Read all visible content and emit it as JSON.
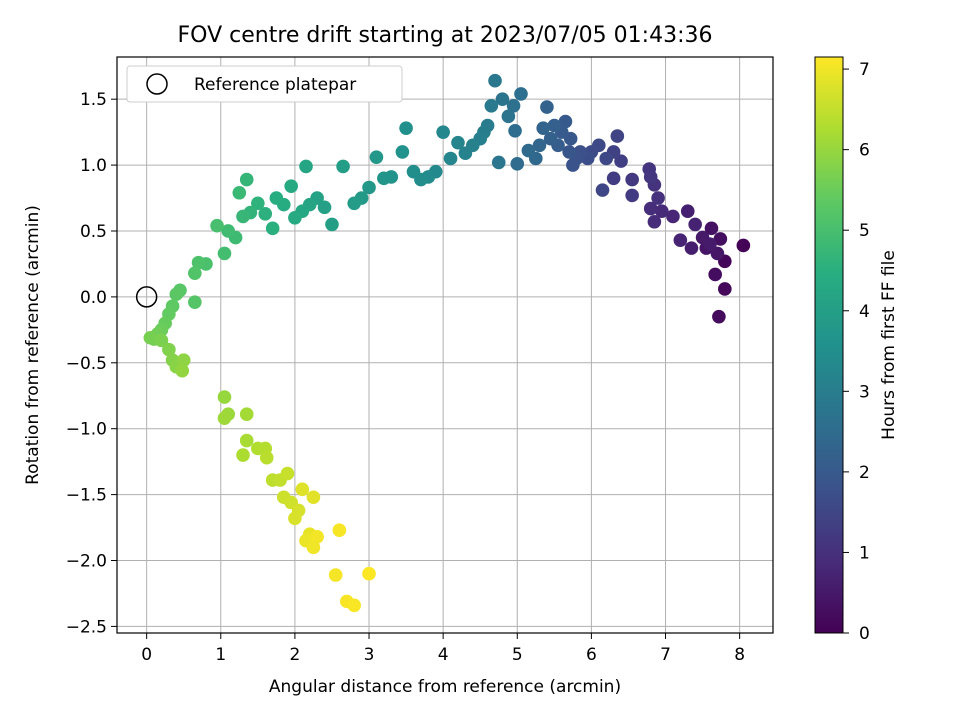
{
  "chart_data": {
    "type": "scatter",
    "title": "FOV centre drift starting at 2023/07/05 01:43:36",
    "xlabel": "Angular distance from reference (arcmin)",
    "ylabel": "Rotation from reference (arcmin)",
    "xlim": [
      -0.4,
      8.45
    ],
    "ylim": [
      -2.55,
      1.82
    ],
    "xticks": [
      0,
      1,
      2,
      3,
      4,
      5,
      6,
      7,
      8
    ],
    "yticks": [
      -2.5,
      -2.0,
      -1.5,
      -1.0,
      -0.5,
      0.0,
      0.5,
      1.0,
      1.5
    ],
    "xtick_labels": [
      "0",
      "1",
      "2",
      "3",
      "4",
      "5",
      "6",
      "7",
      "8"
    ],
    "ytick_labels": [
      "−2.5",
      "−2.0",
      "−1.5",
      "−1.0",
      "−0.5",
      "0.0",
      "0.5",
      "1.0",
      "1.5"
    ],
    "grid": true,
    "legend": {
      "placement": "top-left",
      "label": "Reference platepar"
    },
    "reference_point": {
      "x": 0,
      "y": 0
    },
    "colorbar": {
      "label": "Hours from first FF file",
      "colormap": "viridis",
      "range": [
        0,
        7.15
      ],
      "ticks": [
        0,
        1,
        2,
        3,
        4,
        5,
        6,
        7
      ],
      "tick_labels": [
        "0",
        "1",
        "2",
        "3",
        "4",
        "5",
        "6",
        "7"
      ]
    },
    "points": [
      [
        8.05,
        0.39,
        0.05
      ],
      [
        7.8,
        0.27,
        0.1
      ],
      [
        7.8,
        0.06,
        0.15
      ],
      [
        7.72,
        -0.15,
        0.2
      ],
      [
        7.67,
        0.17,
        0.25
      ],
      [
        7.74,
        0.44,
        0.3
      ],
      [
        7.62,
        0.52,
        0.35
      ],
      [
        7.55,
        0.37,
        0.4
      ],
      [
        7.7,
        0.33,
        0.45
      ],
      [
        7.5,
        0.45,
        0.5
      ],
      [
        7.6,
        0.4,
        0.55
      ],
      [
        7.35,
        0.37,
        0.6
      ],
      [
        7.3,
        0.65,
        0.65
      ],
      [
        7.4,
        0.55,
        0.7
      ],
      [
        7.2,
        0.43,
        0.75
      ],
      [
        7.1,
        0.61,
        0.8
      ],
      [
        6.95,
        0.65,
        0.85
      ],
      [
        6.85,
        0.57,
        0.9
      ],
      [
        6.8,
        0.67,
        0.95
      ],
      [
        6.9,
        0.75,
        1.0
      ],
      [
        6.85,
        0.85,
        1.05
      ],
      [
        6.78,
        0.97,
        1.1
      ],
      [
        6.8,
        0.91,
        1.15
      ],
      [
        6.55,
        0.89,
        1.2
      ],
      [
        6.55,
        0.77,
        1.25
      ],
      [
        6.3,
        0.9,
        1.3
      ],
      [
        6.4,
        1.03,
        1.35
      ],
      [
        6.3,
        1.1,
        1.4
      ],
      [
        6.35,
        1.22,
        1.45
      ],
      [
        6.15,
        0.81,
        1.5
      ],
      [
        6.2,
        1.05,
        1.55
      ],
      [
        6.1,
        1.15,
        1.6
      ],
      [
        6.0,
        1.1,
        1.65
      ],
      [
        5.95,
        1.05,
        1.7
      ],
      [
        5.85,
        1.1,
        1.75
      ],
      [
        5.8,
        1.05,
        1.8
      ],
      [
        5.75,
        1.0,
        1.85
      ],
      [
        5.7,
        1.1,
        1.9
      ],
      [
        5.72,
        1.2,
        1.95
      ],
      [
        5.65,
        1.33,
        2.0
      ],
      [
        5.6,
        1.25,
        2.05
      ],
      [
        5.55,
        1.15,
        2.1
      ],
      [
        5.5,
        1.3,
        2.15
      ],
      [
        5.45,
        1.2,
        2.2
      ],
      [
        5.4,
        1.44,
        2.25
      ],
      [
        5.35,
        1.28,
        2.3
      ],
      [
        5.3,
        1.15,
        2.35
      ],
      [
        5.25,
        1.05,
        2.4
      ],
      [
        5.15,
        1.11,
        2.45
      ],
      [
        5.0,
        1.01,
        2.5
      ],
      [
        4.97,
        1.26,
        2.55
      ],
      [
        5.05,
        1.54,
        2.6
      ],
      [
        4.95,
        1.45,
        2.65
      ],
      [
        4.88,
        1.37,
        2.7
      ],
      [
        4.8,
        1.5,
        2.75
      ],
      [
        4.75,
        1.02,
        2.8
      ],
      [
        4.7,
        1.64,
        2.85
      ],
      [
        4.65,
        1.45,
        2.9
      ],
      [
        4.6,
        1.3,
        2.95
      ],
      [
        4.55,
        1.25,
        3.0
      ],
      [
        4.5,
        1.2,
        3.05
      ],
      [
        4.4,
        1.15,
        3.1
      ],
      [
        4.3,
        1.09,
        3.15
      ],
      [
        4.2,
        1.17,
        3.2
      ],
      [
        4.1,
        1.05,
        3.25
      ],
      [
        4.0,
        1.25,
        3.3
      ],
      [
        3.9,
        0.95,
        3.35
      ],
      [
        3.8,
        0.91,
        3.4
      ],
      [
        3.7,
        0.89,
        3.45
      ],
      [
        3.6,
        0.95,
        3.5
      ],
      [
        3.5,
        1.28,
        3.55
      ],
      [
        3.45,
        1.1,
        3.6
      ],
      [
        3.3,
        0.91,
        3.65
      ],
      [
        3.2,
        0.9,
        3.7
      ],
      [
        3.1,
        1.06,
        3.75
      ],
      [
        3.0,
        0.83,
        3.8
      ],
      [
        2.9,
        0.75,
        3.85
      ],
      [
        2.8,
        0.71,
        3.9
      ],
      [
        2.65,
        0.99,
        3.95
      ],
      [
        2.5,
        0.55,
        4.0
      ],
      [
        2.4,
        0.68,
        4.05
      ],
      [
        2.3,
        0.75,
        4.1
      ],
      [
        2.2,
        0.7,
        4.15
      ],
      [
        2.15,
        0.99,
        4.2
      ],
      [
        2.1,
        0.65,
        4.25
      ],
      [
        2.0,
        0.6,
        4.3
      ],
      [
        1.95,
        0.84,
        4.35
      ],
      [
        1.85,
        0.7,
        4.4
      ],
      [
        1.75,
        0.75,
        4.45
      ],
      [
        1.7,
        0.52,
        4.5
      ],
      [
        1.6,
        0.63,
        4.55
      ],
      [
        1.5,
        0.71,
        4.6
      ],
      [
        1.4,
        0.64,
        4.65
      ],
      [
        1.35,
        0.89,
        4.7
      ],
      [
        1.3,
        0.61,
        4.75
      ],
      [
        1.25,
        0.79,
        4.8
      ],
      [
        1.2,
        0.45,
        4.85
      ],
      [
        1.1,
        0.5,
        4.9
      ],
      [
        1.05,
        0.33,
        4.95
      ],
      [
        0.95,
        0.54,
        5.0
      ],
      [
        0.8,
        0.25,
        5.05
      ],
      [
        0.7,
        0.26,
        5.1
      ],
      [
        0.65,
        0.18,
        5.15
      ],
      [
        0.65,
        -0.04,
        5.2
      ],
      [
        0.45,
        0.05,
        5.25
      ],
      [
        0.4,
        0.02,
        5.3
      ],
      [
        0.35,
        -0.07,
        5.35
      ],
      [
        0.3,
        -0.13,
        5.4
      ],
      [
        0.25,
        -0.2,
        5.45
      ],
      [
        0.2,
        -0.25,
        5.5
      ],
      [
        0.15,
        -0.28,
        5.55
      ],
      [
        0.1,
        -0.32,
        5.6
      ],
      [
        0.05,
        -0.31,
        5.65
      ],
      [
        0.2,
        -0.33,
        5.7
      ],
      [
        0.3,
        -0.4,
        5.75
      ],
      [
        0.35,
        -0.48,
        5.8
      ],
      [
        0.4,
        -0.53,
        5.85
      ],
      [
        0.5,
        -0.48,
        5.9
      ],
      [
        0.48,
        -0.56,
        5.95
      ],
      [
        1.05,
        -0.76,
        6.0
      ],
      [
        1.1,
        -0.89,
        6.05
      ],
      [
        1.05,
        -0.92,
        6.1
      ],
      [
        1.35,
        -0.89,
        6.15
      ],
      [
        1.35,
        -1.09,
        6.2
      ],
      [
        1.3,
        -1.2,
        6.25
      ],
      [
        1.5,
        -1.15,
        6.3
      ],
      [
        1.6,
        -1.15,
        6.35
      ],
      [
        1.62,
        -1.22,
        6.4
      ],
      [
        1.7,
        -1.39,
        6.45
      ],
      [
        1.8,
        -1.39,
        6.5
      ],
      [
        1.9,
        -1.34,
        6.55
      ],
      [
        1.85,
        -1.52,
        6.6
      ],
      [
        1.95,
        -1.56,
        6.65
      ],
      [
        2.05,
        -1.62,
        6.7
      ],
      [
        2.0,
        -1.68,
        6.75
      ],
      [
        2.1,
        -1.46,
        6.8
      ],
      [
        2.25,
        -1.52,
        6.85
      ],
      [
        2.2,
        -1.8,
        6.9
      ],
      [
        2.15,
        -1.85,
        6.95
      ],
      [
        2.25,
        -1.9,
        7.0
      ],
      [
        2.3,
        -1.82,
        7.03
      ],
      [
        2.55,
        -2.11,
        7.05
      ],
      [
        2.6,
        -1.77,
        7.07
      ],
      [
        2.7,
        -2.31,
        7.09
      ],
      [
        2.8,
        -2.34,
        7.11
      ],
      [
        3.0,
        -2.1,
        7.14
      ]
    ]
  }
}
